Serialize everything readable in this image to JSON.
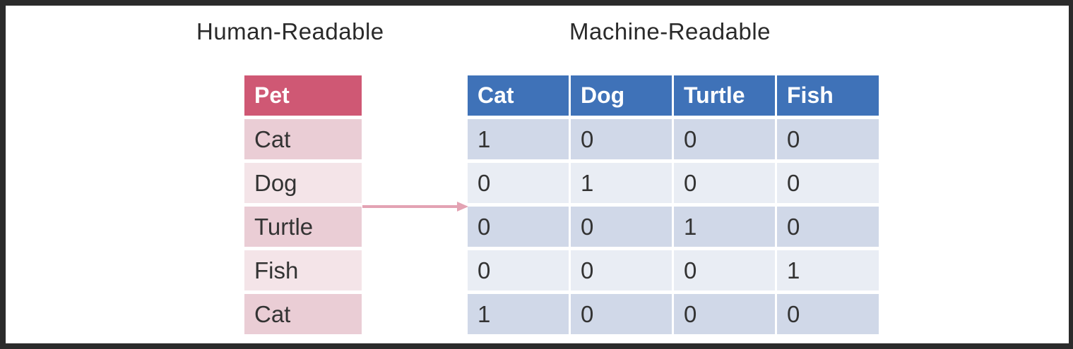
{
  "headings": {
    "left": "Human-Readable",
    "right": "Machine-Readable"
  },
  "pet_table": {
    "header": "Pet",
    "rows": [
      "Cat",
      "Dog",
      "Turtle",
      "Fish",
      "Cat"
    ]
  },
  "onehot_table": {
    "headers": [
      "Cat",
      "Dog",
      "Turtle",
      "Fish"
    ],
    "rows": [
      [
        "1",
        "0",
        "0",
        "0"
      ],
      [
        "0",
        "1",
        "0",
        "0"
      ],
      [
        "0",
        "0",
        "1",
        "0"
      ],
      [
        "0",
        "0",
        "0",
        "1"
      ],
      [
        "1",
        "0",
        "0",
        "0"
      ]
    ]
  },
  "colors": {
    "pet_header": "#cf5874",
    "pet_row_dark": "#eacdd5",
    "pet_row_light": "#f4e4e8",
    "onehot_header": "#3f72b8",
    "onehot_row_dark": "#d0d8e8",
    "onehot_row_light": "#e9edf4",
    "arrow": "#e3a3b3"
  }
}
